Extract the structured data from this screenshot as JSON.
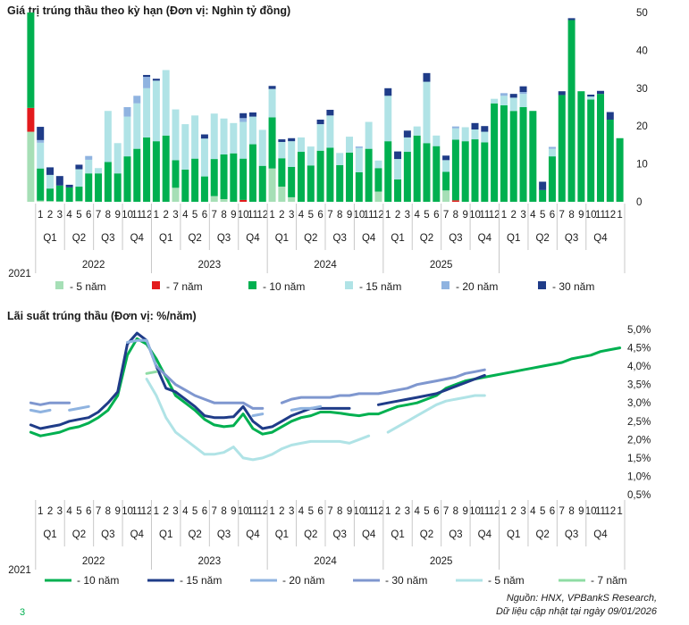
{
  "page_number": "3",
  "source_line1": "Nguồn: HNX, VPBankS Research,",
  "source_line2": "Dữ liệu cập nhật tại ngày 09/01/2026",
  "periods": {
    "month_labels": [
      "1",
      "2",
      "3",
      "4",
      "5",
      "6",
      "7",
      "8",
      "9",
      "10",
      "11",
      "12"
    ],
    "quarters": [
      "Q1",
      "Q2",
      "Q3",
      "Q4"
    ],
    "years": [
      "2021",
      "2022",
      "2023",
      "2024",
      "2025"
    ]
  },
  "chart_data": [
    {
      "type": "bar",
      "stacked": true,
      "title": "Giá trị trúng thầu theo kỳ hạn (Đơn vị: Nghìn tỷ đồng)",
      "ylim": [
        0,
        50
      ],
      "yticks": [
        0,
        10,
        20,
        30,
        40,
        50
      ],
      "legend_position": "bottom",
      "colors": {
        "5": "#a6dfb6",
        "7": "#e31a1c",
        "10": "#00b050",
        "15": "#b0e3e6",
        "20": "#8fb3e0",
        "30": "#1f3c88"
      },
      "series": [
        {
          "name": "- 5 năm",
          "color": "#a6dfb6",
          "values": [
            18.5,
            0.3,
            0.2,
            0.1,
            0,
            0.2,
            0,
            0,
            0,
            0,
            0,
            0,
            0,
            0,
            0,
            3.7,
            0,
            0,
            0,
            1.5,
            0.7,
            0,
            0,
            0,
            0,
            8.8,
            4,
            1.2,
            0,
            0,
            0,
            0,
            0,
            0,
            0,
            0,
            2.7,
            0,
            0,
            0,
            0,
            0,
            0,
            3,
            0,
            0,
            0,
            0,
            0,
            0,
            0,
            0,
            0,
            0,
            0,
            0,
            0,
            0,
            0,
            0,
            0,
            0
          ]
        },
        {
          "name": "- 7 năm",
          "color": "#e31a1c",
          "values": [
            6.3,
            0,
            0,
            0,
            0,
            0,
            0,
            0,
            0,
            0,
            0,
            0,
            0,
            0,
            0,
            0,
            0,
            0,
            0,
            0,
            0,
            0,
            0.5,
            0,
            0,
            0,
            0,
            0,
            0,
            0,
            0,
            0,
            0,
            0,
            0,
            0,
            0,
            0,
            0,
            0,
            0,
            0,
            0,
            0,
            0.4,
            0,
            0,
            0,
            0,
            0,
            0,
            0,
            0,
            0,
            0,
            0,
            0,
            0,
            0,
            0,
            0,
            0
          ]
        },
        {
          "name": "- 10 năm",
          "color": "#00b050",
          "values": [
            25.2,
            8.5,
            3.3,
            4.2,
            3.8,
            3.8,
            7.5,
            7.5,
            10.5,
            7.5,
            12,
            14,
            17,
            16,
            17.5,
            7.3,
            8.5,
            11.4,
            6.7,
            9.8,
            11.8,
            12.8,
            10.9,
            15.2,
            9.5,
            13.5,
            7.5,
            8,
            13.2,
            9.6,
            13.5,
            14.3,
            9.7,
            13,
            7.8,
            14,
            6.2,
            16,
            5.9,
            13.2,
            17.5,
            15.5,
            14.7,
            4.9,
            16,
            16,
            16.5,
            15.7,
            26,
            25.5,
            24,
            25,
            24,
            3.1,
            12,
            28.2,
            48,
            29.2,
            27,
            28.5,
            21.7,
            16.8
          ]
        },
        {
          "name": "- 15 năm",
          "color": "#b0e3e6",
          "values": [
            0,
            6.8,
            3.6,
            0,
            0,
            4.6,
            3.6,
            1.4,
            13.5,
            8,
            10.5,
            12,
            13,
            16,
            17.3,
            13.4,
            12,
            11.4,
            10,
            12,
            9.5,
            8,
            9.7,
            7.3,
            9.5,
            7.5,
            4.3,
            6.8,
            3.8,
            5,
            7,
            8.5,
            3.2,
            4.2,
            6.4,
            7.1,
            2,
            12,
            5.4,
            3.8,
            2.4,
            16.2,
            2.8,
            3.1,
            3,
            3.7,
            2.6,
            2.8,
            1.2,
            2.5,
            3.5,
            3.5,
            0,
            0,
            2,
            0,
            0,
            0,
            0.8,
            0,
            0,
            0
          ]
        },
        {
          "name": "- 20 năm",
          "color": "#8fb3e0",
          "values": [
            0,
            0.7,
            0,
            0,
            0,
            0,
            1,
            0,
            0,
            0,
            2.5,
            2,
            3,
            0,
            0,
            0,
            0,
            0,
            0,
            0,
            0,
            0,
            1,
            0,
            0,
            0,
            0,
            0,
            0,
            0,
            0,
            0,
            0,
            0,
            0.4,
            0,
            0,
            0,
            0,
            0,
            0,
            0,
            0,
            0,
            0.5,
            0,
            0,
            0,
            0,
            0.7,
            0,
            0.5,
            0,
            0,
            0.5,
            0,
            0,
            0,
            0,
            0,
            0,
            0
          ]
        },
        {
          "name": "- 30 năm",
          "color": "#1f3c88",
          "values": [
            0,
            3.5,
            2,
            2.5,
            0.7,
            1.2,
            0,
            0,
            0,
            0,
            0,
            0,
            0.5,
            0.5,
            0,
            0,
            0,
            0,
            1.1,
            0,
            0,
            0,
            1.3,
            1.1,
            0,
            0.8,
            0.7,
            0.8,
            0,
            0,
            1.2,
            1.5,
            0,
            0,
            0,
            0,
            0,
            2,
            2,
            1.8,
            0,
            2.3,
            0,
            1.2,
            0,
            0,
            1.7,
            1.5,
            0,
            0,
            1,
            1.5,
            0,
            2.2,
            0,
            1,
            0.5,
            0,
            0.5,
            0.8,
            2,
            0
          ]
        }
      ]
    },
    {
      "type": "line",
      "title": "Lãi suất trúng thầu (Đơn vị: %/năm)",
      "ylim": [
        0.5,
        5.0
      ],
      "yticks": [
        "0,5%",
        "1,0%",
        "1,5%",
        "2,0%",
        "2,5%",
        "3,0%",
        "3,5%",
        "4,0%",
        "4,5%",
        "5,0%"
      ],
      "legend_position": "bottom",
      "series": [
        {
          "name": "- 10 năm",
          "color": "#00b050",
          "width": 3,
          "values": [
            2.2,
            2.1,
            2.15,
            2.2,
            2.3,
            2.35,
            2.45,
            2.6,
            2.8,
            3.2,
            4.3,
            4.75,
            4.6,
            4.2,
            3.7,
            3.2,
            3.0,
            2.8,
            2.55,
            2.4,
            2.35,
            2.38,
            2.7,
            2.3,
            2.15,
            2.2,
            2.35,
            2.5,
            2.6,
            2.65,
            2.75,
            2.75,
            2.72,
            2.68,
            2.65,
            2.7,
            2.7,
            2.8,
            2.9,
            2.95,
            3.0,
            3.1,
            3.2,
            3.4,
            3.5,
            3.6,
            3.65,
            3.7,
            3.75,
            3.8,
            3.85,
            3.9,
            3.95,
            4.0,
            4.05,
            4.1,
            4.2,
            4.25,
            4.3,
            4.4,
            4.45,
            4.5
          ]
        },
        {
          "name": "- 15 năm",
          "color": "#1f3c88",
          "width": 3,
          "values": [
            2.4,
            2.3,
            2.35,
            2.4,
            2.5,
            2.55,
            2.6,
            2.75,
            3.0,
            3.3,
            4.6,
            4.9,
            4.7,
            4.0,
            3.4,
            3.3,
            3.1,
            2.9,
            2.65,
            2.6,
            2.6,
            2.62,
            2.9,
            2.5,
            2.3,
            2.35,
            2.5,
            2.65,
            2.75,
            2.85,
            2.85,
            2.85,
            2.85,
            2.85,
            null,
            null,
            2.95,
            3.0,
            3.05,
            3.1,
            3.15,
            3.2,
            3.25,
            3.35,
            3.45,
            3.55,
            3.65,
            3.75,
            null,
            null,
            null,
            null,
            null,
            null,
            null,
            null,
            null,
            null,
            null,
            null,
            null,
            null
          ]
        },
        {
          "name": "- 20 năm",
          "color": "#8fb3e0",
          "width": 3,
          "values": [
            2.8,
            2.75,
            2.8,
            null,
            2.8,
            2.85,
            2.9,
            null,
            null,
            null,
            4.65,
            4.7,
            4.7,
            4.0,
            null,
            null,
            null,
            null,
            null,
            null,
            null,
            null,
            null,
            2.65,
            2.7,
            null,
            null,
            2.8,
            2.85,
            2.85,
            2.9,
            null,
            null,
            null,
            null,
            null,
            null,
            null,
            null,
            null,
            null,
            null,
            null,
            null,
            null,
            null,
            null,
            null,
            null,
            null,
            null,
            null,
            null,
            null,
            null,
            null,
            null,
            null,
            null,
            null,
            null,
            null
          ]
        },
        {
          "name": "- 30 năm",
          "color": "#7f97cf",
          "width": 3,
          "values": [
            3.0,
            2.95,
            3.0,
            3.0,
            3.0,
            null,
            null,
            null,
            null,
            null,
            null,
            null,
            null,
            4.0,
            3.75,
            3.5,
            3.35,
            3.2,
            3.1,
            3.0,
            3.0,
            3.0,
            3.0,
            2.85,
            2.85,
            null,
            3.0,
            3.1,
            3.15,
            3.15,
            3.15,
            3.15,
            3.2,
            3.2,
            3.25,
            3.25,
            3.25,
            3.3,
            3.35,
            3.4,
            3.5,
            3.55,
            3.6,
            3.65,
            3.7,
            3.8,
            3.85,
            3.9,
            null,
            null,
            null,
            null,
            null,
            null,
            null,
            null,
            null,
            null,
            null,
            null,
            null,
            null
          ]
        },
        {
          "name": "- 5 năm",
          "color": "#b0e3e6",
          "width": 3,
          "values": [
            null,
            null,
            null,
            null,
            null,
            null,
            null,
            null,
            null,
            null,
            null,
            null,
            3.65,
            3.2,
            2.6,
            2.2,
            2.0,
            1.8,
            1.6,
            1.6,
            1.65,
            1.8,
            1.5,
            1.45,
            1.5,
            1.6,
            1.75,
            1.85,
            1.9,
            1.95,
            1.95,
            1.95,
            1.95,
            1.9,
            2.0,
            2.1,
            null,
            2.2,
            2.35,
            2.5,
            2.65,
            2.8,
            2.95,
            3.05,
            3.1,
            3.15,
            3.2,
            3.2,
            null,
            null,
            null,
            null,
            null,
            null,
            null,
            null,
            null,
            null,
            null,
            null,
            null,
            null
          ]
        },
        {
          "name": "- 7 năm",
          "color": "#8fdca4",
          "width": 3,
          "values": [
            null,
            null,
            null,
            null,
            null,
            null,
            null,
            null,
            null,
            null,
            null,
            null,
            3.8,
            3.85,
            null,
            null,
            null,
            null,
            null,
            null,
            null,
            null,
            null,
            null,
            null,
            null,
            null,
            null,
            null,
            null,
            null,
            null,
            null,
            null,
            null,
            null,
            null,
            null,
            null,
            null,
            null,
            null,
            null,
            null,
            null,
            null,
            null,
            null,
            null,
            null,
            null,
            null,
            null,
            null,
            null,
            null,
            null,
            null,
            null,
            null,
            null,
            null
          ]
        }
      ]
    }
  ]
}
